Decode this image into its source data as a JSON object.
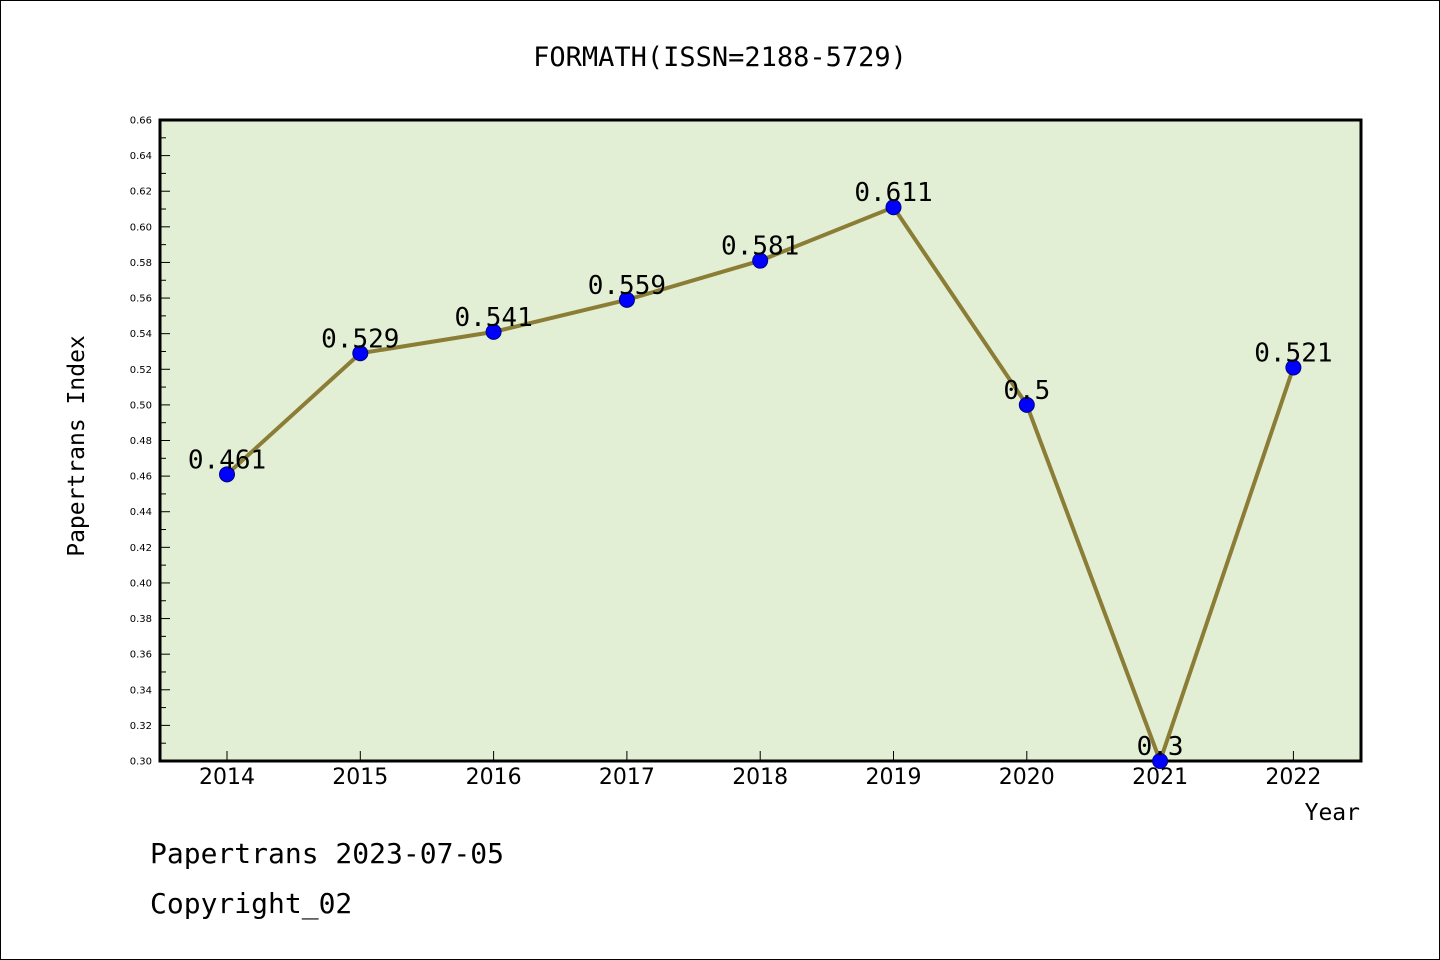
{
  "chart_data": {
    "type": "line",
    "title": "FORMATH(ISSN=2188-5729)",
    "xlabel": "Year",
    "ylabel": "Papertrans Index",
    "categories": [
      "2014",
      "2015",
      "2016",
      "2017",
      "2018",
      "2019",
      "2020",
      "2021",
      "2022"
    ],
    "values": [
      0.461,
      0.529,
      0.541,
      0.559,
      0.581,
      0.611,
      0.5,
      0.3,
      0.521
    ],
    "data_labels": [
      "0.461",
      "0.529",
      "0.541",
      "0.559",
      "0.581",
      "0.611",
      "0.5",
      "0.3",
      "0.521"
    ],
    "ylim": [
      0.3,
      0.66
    ],
    "yticks": [
      "0.30",
      "0.32",
      "0.34",
      "0.36",
      "0.38",
      "0.40",
      "0.42",
      "0.44",
      "0.46",
      "0.48",
      "0.50",
      "0.52",
      "0.54",
      "0.56",
      "0.58",
      "0.60",
      "0.62",
      "0.64",
      "0.66"
    ],
    "grid": false,
    "legend": "none",
    "colors": {
      "plot_background": "#e2efd4",
      "line": "#8b7d35",
      "marker": "#0000ff",
      "marker_edge": "#000080"
    }
  },
  "footer": {
    "line1": "Papertrans 2023-07-05",
    "line2": "Copyright_02"
  }
}
